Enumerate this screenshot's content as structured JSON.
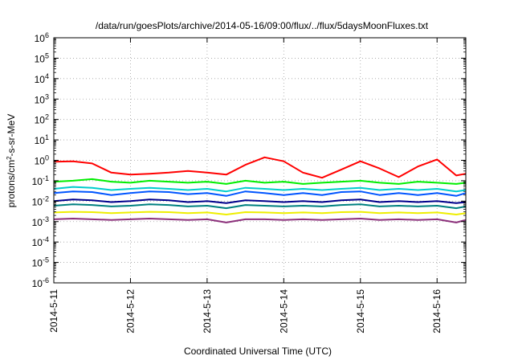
{
  "chart_data": {
    "type": "line",
    "title": "/data/run/goesPlots/archive/2014-05-16/09:00/flux/../flux/5daysMoonFluxes.txt",
    "xlabel": "Coordinated Universal Time (UTC)",
    "ylabel": "protons/cm2-s-sr-MeV",
    "ylabel_parts": {
      "pre": "protons/cm",
      "sup": "2",
      "post": "-s-sr-MeV"
    },
    "y_scale": "log",
    "ylim": [
      1e-06,
      1000000.0
    ],
    "y_ticks": [
      {
        "value": -6,
        "base": "10",
        "exp": "-6"
      },
      {
        "value": -5,
        "base": "10",
        "exp": "-5"
      },
      {
        "value": -4,
        "base": "10",
        "exp": "-4"
      },
      {
        "value": -3,
        "base": "10",
        "exp": "-3"
      },
      {
        "value": -2,
        "base": "10",
        "exp": "-2"
      },
      {
        "value": -1,
        "base": "10",
        "exp": "-1"
      },
      {
        "value": 0,
        "base": "10",
        "exp": "0"
      },
      {
        "value": 1,
        "base": "10",
        "exp": "1"
      },
      {
        "value": 2,
        "base": "10",
        "exp": "2"
      },
      {
        "value": 3,
        "base": "10",
        "exp": "3"
      },
      {
        "value": 4,
        "base": "10",
        "exp": "4"
      },
      {
        "value": 5,
        "base": "10",
        "exp": "5"
      },
      {
        "value": 6,
        "base": "10",
        "exp": "6"
      }
    ],
    "xlim": [
      "2014-05-11T00:00",
      "2014-05-16T09:00"
    ],
    "x_ticks": [
      {
        "label": "2014-5-11",
        "date": "2014-05-11T00:00"
      },
      {
        "label": "2014-5-12",
        "date": "2014-05-12T00:00"
      },
      {
        "label": "2014-5-13",
        "date": "2014-05-13T00:00"
      },
      {
        "label": "2014-5-14",
        "date": "2014-05-14T00:00"
      },
      {
        "label": "2014-5-15",
        "date": "2014-05-15T00:00"
      },
      {
        "label": "2014-5-16",
        "date": "2014-05-16T00:00"
      }
    ],
    "grid": true,
    "series": [
      {
        "color": "#ff0000",
        "x": [
          "2014-05-11T00:00",
          "2014-05-11T06:00",
          "2014-05-11T12:00",
          "2014-05-11T18:00",
          "2014-05-12T00:00",
          "2014-05-12T06:00",
          "2014-05-12T12:00",
          "2014-05-12T18:00",
          "2014-05-13T00:00",
          "2014-05-13T06:00",
          "2014-05-13T12:00",
          "2014-05-13T18:00",
          "2014-05-14T00:00",
          "2014-05-14T06:00",
          "2014-05-14T12:00",
          "2014-05-14T18:00",
          "2014-05-15T00:00",
          "2014-05-15T06:00",
          "2014-05-15T12:00",
          "2014-05-15T18:00",
          "2014-05-16T00:00",
          "2014-05-16T06:00",
          "2014-05-16T09:00"
        ],
        "y": [
          0.85,
          0.9,
          0.7,
          0.25,
          0.2,
          0.22,
          0.25,
          0.3,
          0.25,
          0.2,
          0.6,
          1.4,
          0.9,
          0.25,
          0.14,
          0.35,
          0.9,
          0.4,
          0.15,
          0.5,
          1.1,
          0.18,
          0.22
        ]
      },
      {
        "color": "#00ee00",
        "x": [
          "2014-05-11T00:00",
          "2014-05-11T06:00",
          "2014-05-11T12:00",
          "2014-05-11T18:00",
          "2014-05-12T00:00",
          "2014-05-12T06:00",
          "2014-05-12T12:00",
          "2014-05-12T18:00",
          "2014-05-13T00:00",
          "2014-05-13T06:00",
          "2014-05-13T12:00",
          "2014-05-13T18:00",
          "2014-05-14T00:00",
          "2014-05-14T06:00",
          "2014-05-14T12:00",
          "2014-05-14T18:00",
          "2014-05-15T00:00",
          "2014-05-15T06:00",
          "2014-05-15T12:00",
          "2014-05-15T18:00",
          "2014-05-16T00:00",
          "2014-05-16T06:00",
          "2014-05-16T09:00"
        ],
        "y": [
          0.09,
          0.1,
          0.12,
          0.09,
          0.08,
          0.1,
          0.09,
          0.08,
          0.09,
          0.07,
          0.1,
          0.08,
          0.09,
          0.07,
          0.08,
          0.09,
          0.1,
          0.08,
          0.07,
          0.09,
          0.08,
          0.07,
          0.08
        ]
      },
      {
        "color": "#00cccc",
        "x": [
          "2014-05-11T00:00",
          "2014-05-11T06:00",
          "2014-05-11T12:00",
          "2014-05-11T18:00",
          "2014-05-12T00:00",
          "2014-05-12T06:00",
          "2014-05-12T12:00",
          "2014-05-12T18:00",
          "2014-05-13T00:00",
          "2014-05-13T06:00",
          "2014-05-13T12:00",
          "2014-05-13T18:00",
          "2014-05-14T00:00",
          "2014-05-14T06:00",
          "2014-05-14T12:00",
          "2014-05-14T18:00",
          "2014-05-15T00:00",
          "2014-05-15T06:00",
          "2014-05-15T12:00",
          "2014-05-15T18:00",
          "2014-05-16T00:00",
          "2014-05-16T06:00",
          "2014-05-16T09:00"
        ],
        "y": [
          0.04,
          0.05,
          0.045,
          0.035,
          0.04,
          0.045,
          0.04,
          0.035,
          0.04,
          0.03,
          0.045,
          0.04,
          0.035,
          0.04,
          0.035,
          0.04,
          0.045,
          0.035,
          0.04,
          0.035,
          0.04,
          0.03,
          0.035
        ]
      },
      {
        "color": "#0055ff",
        "x": [
          "2014-05-11T00:00",
          "2014-05-11T06:00",
          "2014-05-11T12:00",
          "2014-05-11T18:00",
          "2014-05-12T00:00",
          "2014-05-12T06:00",
          "2014-05-12T12:00",
          "2014-05-12T18:00",
          "2014-05-13T00:00",
          "2014-05-13T06:00",
          "2014-05-13T12:00",
          "2014-05-13T18:00",
          "2014-05-14T00:00",
          "2014-05-14T06:00",
          "2014-05-14T12:00",
          "2014-05-14T18:00",
          "2014-05-15T00:00",
          "2014-05-15T06:00",
          "2014-05-15T12:00",
          "2014-05-15T18:00",
          "2014-05-16T00:00",
          "2014-05-16T06:00",
          "2014-05-16T09:00"
        ],
        "y": [
          0.025,
          0.03,
          0.028,
          0.02,
          0.025,
          0.03,
          0.028,
          0.022,
          0.025,
          0.018,
          0.03,
          0.025,
          0.02,
          0.025,
          0.02,
          0.028,
          0.03,
          0.02,
          0.025,
          0.02,
          0.025,
          0.018,
          0.025
        ]
      },
      {
        "color": "#00008b",
        "x": [
          "2014-05-11T00:00",
          "2014-05-11T06:00",
          "2014-05-11T12:00",
          "2014-05-11T18:00",
          "2014-05-12T00:00",
          "2014-05-12T06:00",
          "2014-05-12T12:00",
          "2014-05-12T18:00",
          "2014-05-13T00:00",
          "2014-05-13T06:00",
          "2014-05-13T12:00",
          "2014-05-13T18:00",
          "2014-05-14T00:00",
          "2014-05-14T06:00",
          "2014-05-14T12:00",
          "2014-05-14T18:00",
          "2014-05-15T00:00",
          "2014-05-15T06:00",
          "2014-05-15T12:00",
          "2014-05-15T18:00",
          "2014-05-16T00:00",
          "2014-05-16T06:00",
          "2014-05-16T09:00"
        ],
        "y": [
          0.01,
          0.012,
          0.011,
          0.009,
          0.01,
          0.012,
          0.011,
          0.009,
          0.01,
          0.008,
          0.011,
          0.01,
          0.009,
          0.01,
          0.009,
          0.011,
          0.012,
          0.009,
          0.01,
          0.009,
          0.01,
          0.008,
          0.009
        ]
      },
      {
        "color": "#008080",
        "x": [
          "2014-05-11T00:00",
          "2014-05-11T06:00",
          "2014-05-11T12:00",
          "2014-05-11T18:00",
          "2014-05-12T00:00",
          "2014-05-12T06:00",
          "2014-05-12T12:00",
          "2014-05-12T18:00",
          "2014-05-13T00:00",
          "2014-05-13T06:00",
          "2014-05-13T12:00",
          "2014-05-13T18:00",
          "2014-05-14T00:00",
          "2014-05-14T06:00",
          "2014-05-14T12:00",
          "2014-05-14T18:00",
          "2014-05-15T00:00",
          "2014-05-15T06:00",
          "2014-05-15T12:00",
          "2014-05-15T18:00",
          "2014-05-16T00:00",
          "2014-05-16T06:00",
          "2014-05-16T09:00"
        ],
        "y": [
          0.006,
          0.007,
          0.0065,
          0.0055,
          0.006,
          0.007,
          0.0065,
          0.0055,
          0.006,
          0.0045,
          0.0065,
          0.006,
          0.0055,
          0.006,
          0.0055,
          0.0065,
          0.007,
          0.0055,
          0.006,
          0.0055,
          0.006,
          0.0045,
          0.0055
        ]
      },
      {
        "color": "#eeee00",
        "x": [
          "2014-05-11T00:00",
          "2014-05-11T06:00",
          "2014-05-11T12:00",
          "2014-05-11T18:00",
          "2014-05-12T00:00",
          "2014-05-12T06:00",
          "2014-05-12T12:00",
          "2014-05-12T18:00",
          "2014-05-13T00:00",
          "2014-05-13T06:00",
          "2014-05-13T12:00",
          "2014-05-13T18:00",
          "2014-05-14T00:00",
          "2014-05-14T06:00",
          "2014-05-14T12:00",
          "2014-05-14T18:00",
          "2014-05-15T00:00",
          "2014-05-15T06:00",
          "2014-05-15T12:00",
          "2014-05-15T18:00",
          "2014-05-16T00:00",
          "2014-05-16T06:00",
          "2014-05-16T09:00"
        ],
        "y": [
          0.0028,
          0.003,
          0.0029,
          0.0026,
          0.0028,
          0.003,
          0.0029,
          0.0026,
          0.0028,
          0.0022,
          0.0029,
          0.0028,
          0.0026,
          0.0028,
          0.0026,
          0.0029,
          0.003,
          0.0026,
          0.0028,
          0.0026,
          0.0028,
          0.0022,
          0.0026
        ]
      },
      {
        "color": "#8b2f7a",
        "x": [
          "2014-05-11T00:00",
          "2014-05-11T06:00",
          "2014-05-11T12:00",
          "2014-05-11T18:00",
          "2014-05-12T00:00",
          "2014-05-12T06:00",
          "2014-05-12T12:00",
          "2014-05-12T18:00",
          "2014-05-13T00:00",
          "2014-05-13T06:00",
          "2014-05-13T12:00",
          "2014-05-13T18:00",
          "2014-05-14T00:00",
          "2014-05-14T06:00",
          "2014-05-14T12:00",
          "2014-05-14T18:00",
          "2014-05-15T00:00",
          "2014-05-15T06:00",
          "2014-05-15T12:00",
          "2014-05-15T18:00",
          "2014-05-16T00:00",
          "2014-05-16T06:00",
          "2014-05-16T09:00"
        ],
        "y": [
          0.0013,
          0.0014,
          0.0013,
          0.0012,
          0.0013,
          0.0014,
          0.0013,
          0.0012,
          0.0013,
          0.0009,
          0.0013,
          0.0013,
          0.0012,
          0.0013,
          0.0012,
          0.0013,
          0.0014,
          0.0012,
          0.0013,
          0.0012,
          0.0013,
          0.0009,
          0.0012
        ]
      }
    ]
  }
}
